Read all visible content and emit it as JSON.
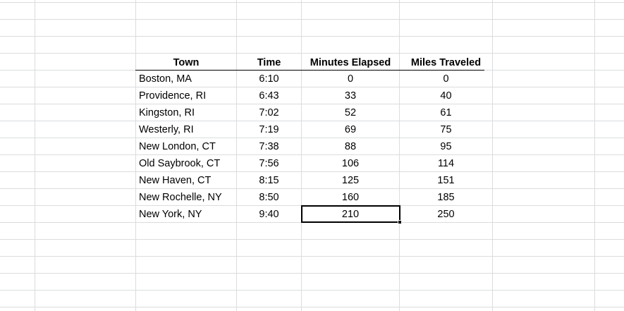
{
  "table": {
    "headers": {
      "town": "Town",
      "time": "Time",
      "minutes": "Minutes Elapsed",
      "miles": "Miles Traveled"
    },
    "rows": [
      {
        "town": "Boston, MA",
        "time": "6:10",
        "minutes": "0",
        "miles": "0"
      },
      {
        "town": "Providence, RI",
        "time": "6:43",
        "minutes": "33",
        "miles": "40"
      },
      {
        "town": "Kingston, RI",
        "time": "7:02",
        "minutes": "52",
        "miles": "61"
      },
      {
        "town": "Westerly, RI",
        "time": "7:19",
        "minutes": "69",
        "miles": "75"
      },
      {
        "town": "New London, CT",
        "time": "7:38",
        "minutes": "88",
        "miles": "95"
      },
      {
        "town": "Old Saybrook, CT",
        "time": "7:56",
        "minutes": "106",
        "miles": "114"
      },
      {
        "town": "New Haven, CT",
        "time": "8:15",
        "minutes": "125",
        "miles": "151"
      },
      {
        "town": "New Rochelle, NY",
        "time": "8:50",
        "minutes": "160",
        "miles": "185"
      },
      {
        "town": "New York, NY",
        "time": "9:40",
        "minutes": "210",
        "miles": "250"
      }
    ]
  },
  "selection": {
    "row": 9,
    "column": "minutes"
  },
  "colors": {
    "gridline": "#dadcde",
    "selection_border": "#000000",
    "header_underline": "#000000"
  }
}
